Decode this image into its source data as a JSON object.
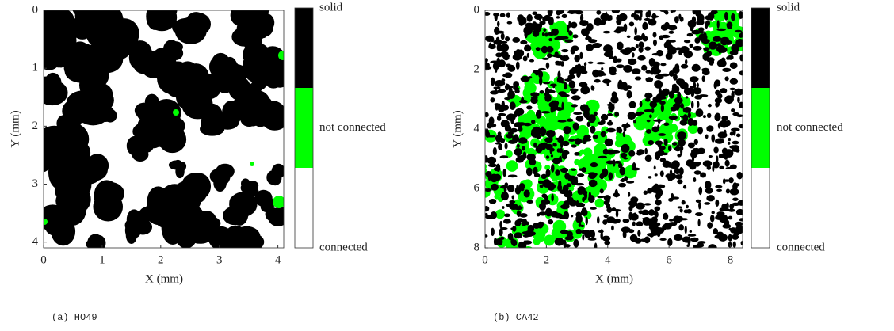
{
  "panels": [
    {
      "caption": "(a) HO49",
      "xlabel": "X (mm)",
      "ylabel": "Y (mm)",
      "xlim": [
        0,
        4.1
      ],
      "ylim": [
        0,
        4.1
      ],
      "xticks": [
        0,
        1,
        2,
        3,
        4
      ],
      "yticks": [
        0,
        1,
        2,
        3,
        4
      ],
      "legend": [
        {
          "name": "solid",
          "color": "#000000"
        },
        {
          "name": "not connected",
          "color": "#00ff00"
        },
        {
          "name": "connected",
          "color": "#ffffff"
        }
      ]
    },
    {
      "caption": "(b) CA42",
      "xlabel": "X (mm)",
      "ylabel": "Y (mm)",
      "xlim": [
        0,
        8.4
      ],
      "ylim": [
        0,
        8
      ],
      "xticks": [
        0,
        2,
        4,
        6,
        8
      ],
      "yticks": [
        0,
        2,
        4,
        6,
        8
      ],
      "legend": [
        {
          "name": "solid",
          "color": "#000000"
        },
        {
          "name": "not connected",
          "color": "#00ff00"
        },
        {
          "name": "connected",
          "color": "#ffffff"
        }
      ]
    }
  ]
}
